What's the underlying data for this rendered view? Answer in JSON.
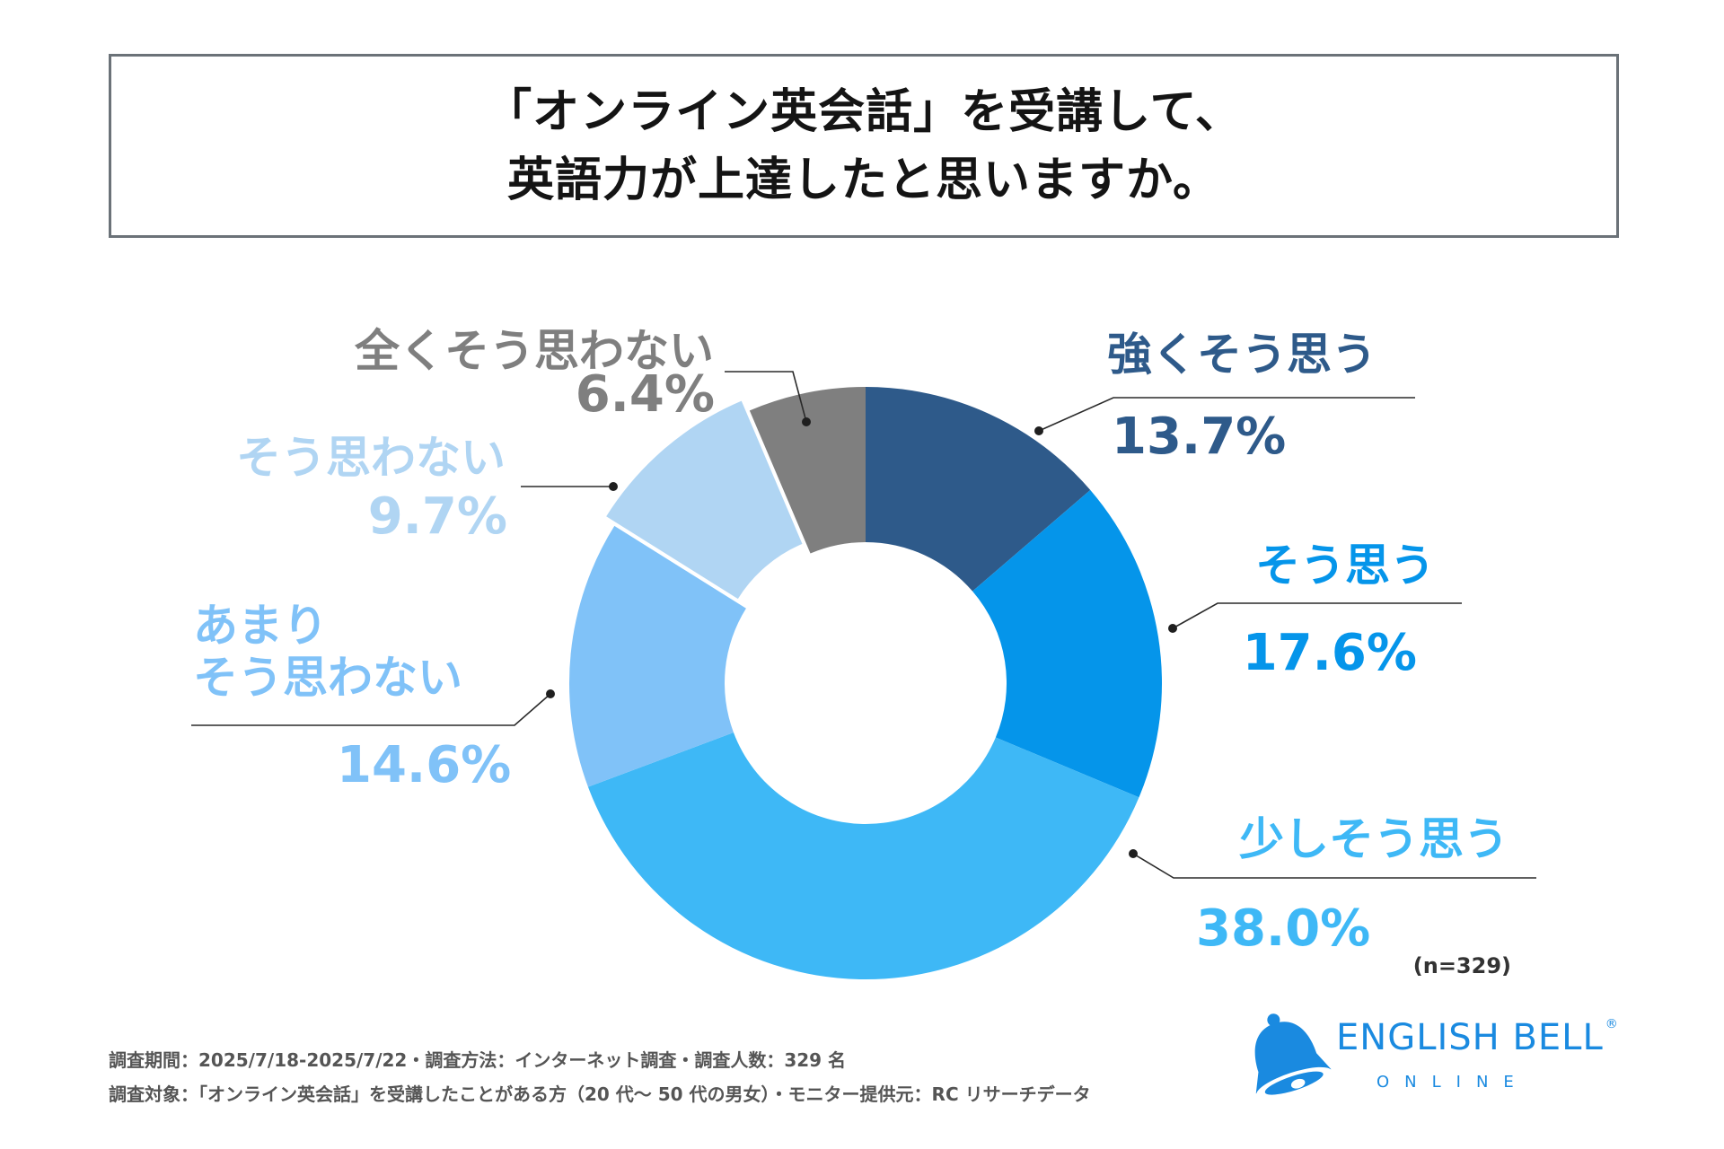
{
  "title": {
    "line1": "「オンライン英会話」を受講して、",
    "line2": "英語力が上達したと思いますか。"
  },
  "chart_data": {
    "type": "pie",
    "variant": "donut",
    "start_angle": "12 o'clock, clockwise",
    "n_label": "(n=329)",
    "slices": [
      {
        "label": "強くそう思う",
        "value": 13.7,
        "value_label": "13.7%",
        "color": "#2e5a8a"
      },
      {
        "label": "そう思う",
        "value": 17.6,
        "value_label": "17.6%",
        "color": "#0595ea"
      },
      {
        "label": "少しそう思う",
        "value": 38.0,
        "value_label": "38.0%",
        "color": "#3eb8f6"
      },
      {
        "label": "あまり\nそう思わない",
        "label_lines": [
          "あまり",
          "そう思わない"
        ],
        "value": 14.6,
        "value_label": "14.6%",
        "color": "#80c2f8"
      },
      {
        "label": "そう思わない",
        "value": 9.7,
        "value_label": "9.7%",
        "color": "#b0d5f3"
      },
      {
        "label": "全くそう思わない",
        "value": 6.4,
        "value_label": "6.4%",
        "color": "#7f7f7f"
      }
    ]
  },
  "footer": {
    "line1": "調査期間：2025/7/18-2025/7/22・調査方法：インターネット調査・調査人数：329 名",
    "line2": "調査対象：「オンライン英会話」を受講したことがある方（20 代〜 50 代の男女）・モニター提供元：RC リサーチデータ"
  },
  "logo": {
    "name": "ENGLISH BELL",
    "registered": "®",
    "sub": "ONLINE",
    "color": "#1a8ae0"
  }
}
